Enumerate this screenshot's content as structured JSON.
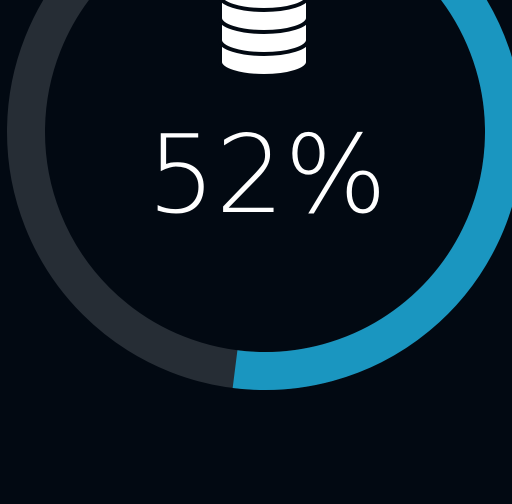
{
  "chart_data": {
    "type": "gauge",
    "values": [
      52
    ],
    "value_labels": [
      "52%"
    ],
    "ylim": [
      0,
      100
    ],
    "color": "#1a96c0",
    "track_color": "#262d35"
  }
}
